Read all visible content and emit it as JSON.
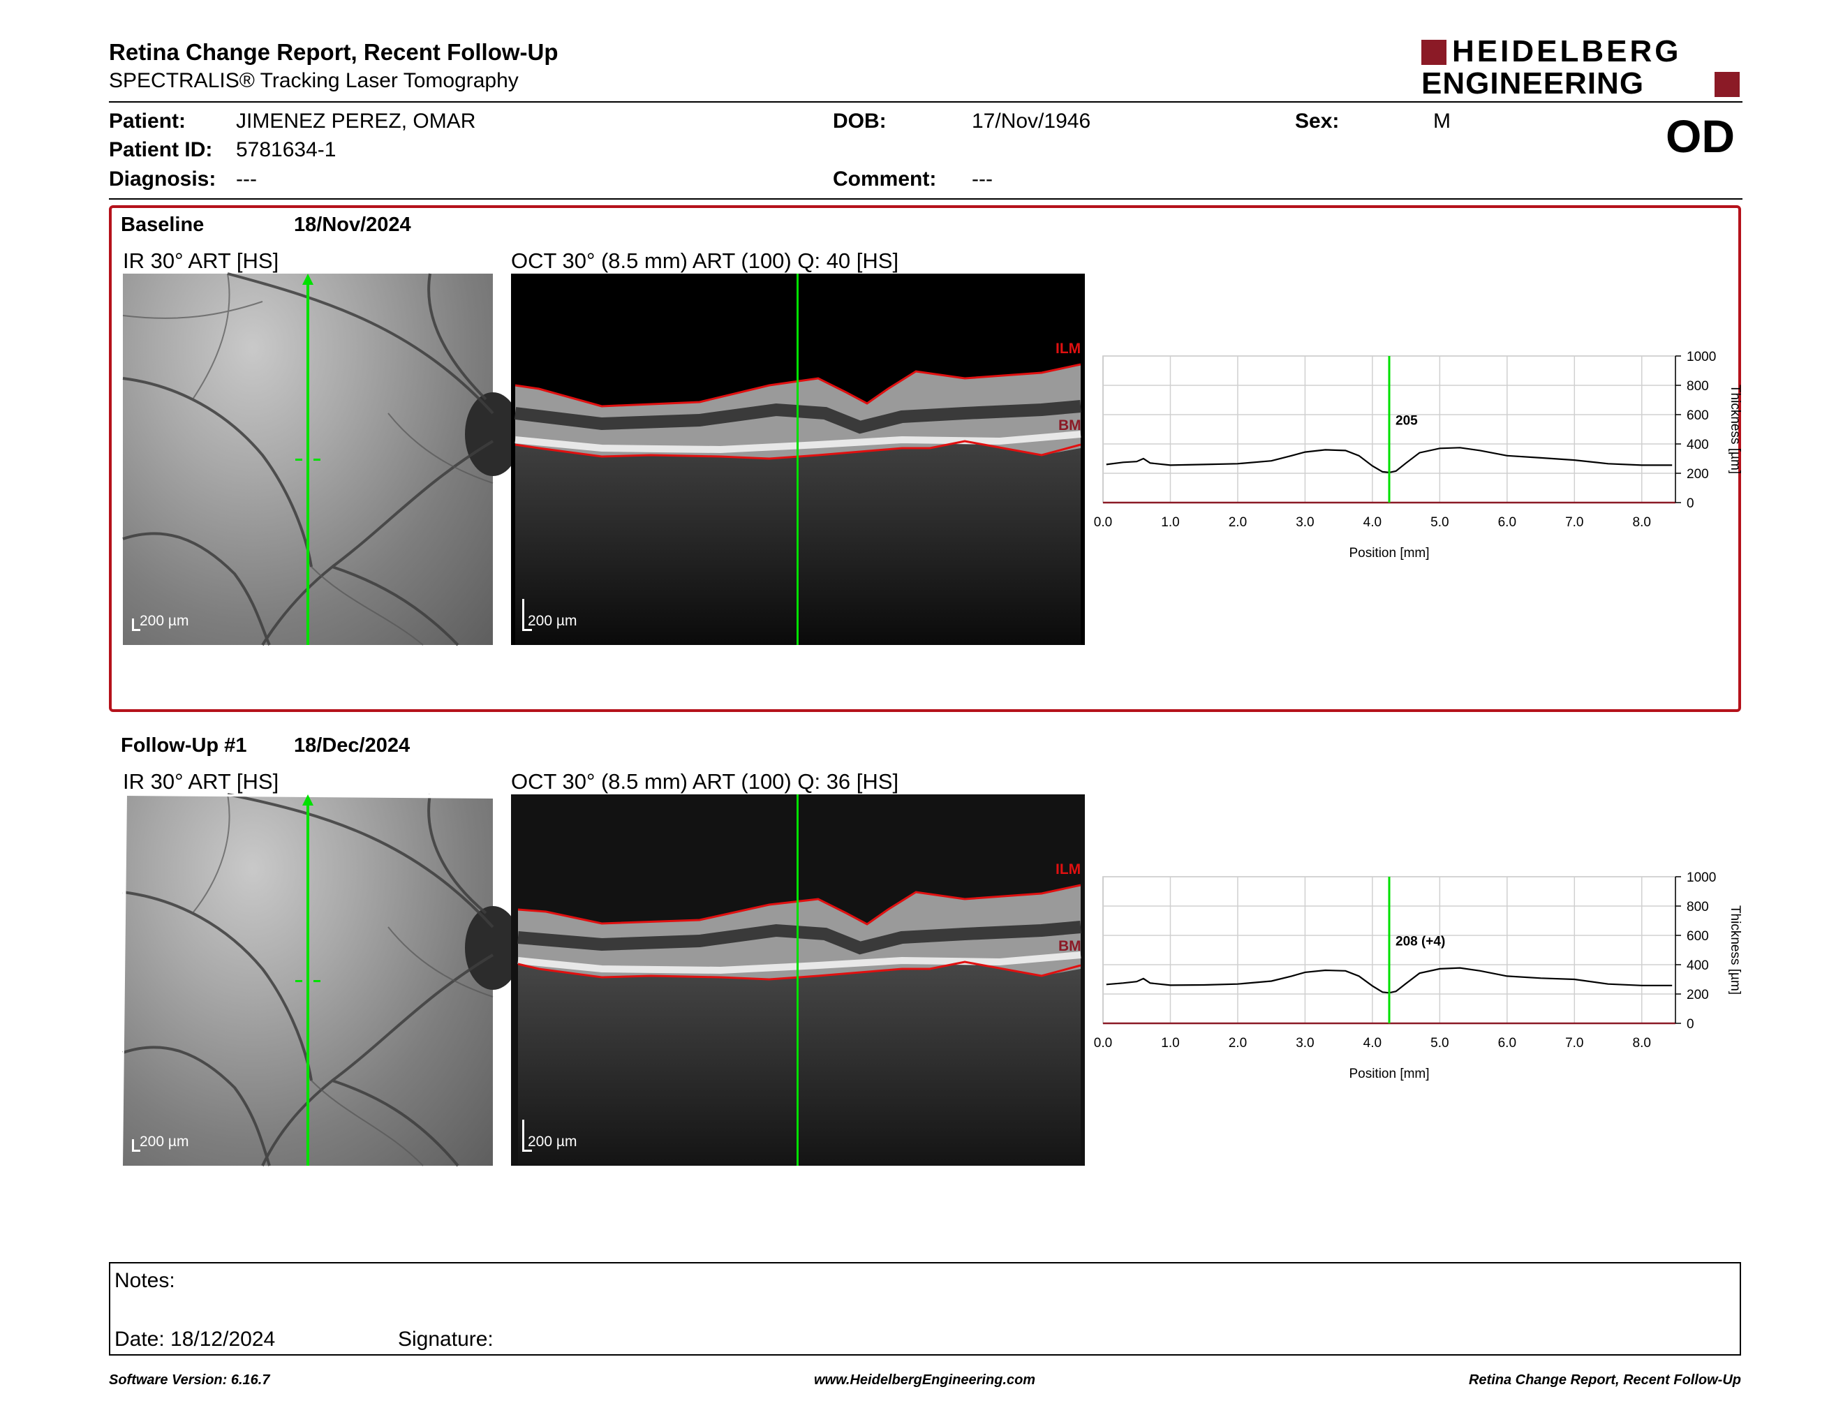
{
  "header": {
    "title": "Retina Change Report, Recent Follow-Up",
    "subtitle": "SPECTRALIS® Tracking Laser Tomography",
    "logo_line1": "HEIDELBERG",
    "logo_line2": "ENGINEERING",
    "eye": "OD"
  },
  "patient": {
    "patient_label": "Patient:",
    "patient_value": "JIMENEZ PEREZ, OMAR",
    "dob_label": "DOB:",
    "dob_value": "17/Nov/1946",
    "sex_label": "Sex:",
    "sex_value": "M",
    "id_label": "Patient ID:",
    "id_value": "5781634-1",
    "diagnosis_label": "Diagnosis:",
    "diagnosis_value": "---",
    "comment_label": "Comment:",
    "comment_value": "---"
  },
  "baseline": {
    "label": "Baseline",
    "date": "18/Nov/2024",
    "ir_title": "IR 30° ART [HS]",
    "oct_title": "OCT 30° (8.5 mm) ART (100) Q: 40 [HS]",
    "scale": "200 µm",
    "ilm": "ILM",
    "bm": "BM",
    "marker_label": "205"
  },
  "followup": {
    "label": "Follow-Up #1",
    "date": "18/Dec/2024",
    "ir_title": "IR 30° ART [HS]",
    "oct_title": "OCT 30° (8.5 mm) ART (100) Q: 36 [HS]",
    "scale": "200 µm",
    "ilm": "ILM",
    "bm": "BM",
    "marker_label": "208 (+4)"
  },
  "chart_data": [
    {
      "type": "line",
      "xlabel": "Position [mm]",
      "ylabel": "Thickness [µm]",
      "xlim": [
        0,
        8.5
      ],
      "ylim": [
        0,
        1000
      ],
      "xticks": [
        "0.0",
        "1.0",
        "2.0",
        "3.0",
        "4.0",
        "5.0",
        "6.0",
        "7.0",
        "8.0"
      ],
      "yticks": [
        "0",
        "200",
        "400",
        "600",
        "800",
        "1000"
      ],
      "grid": true,
      "marker_x": 4.25,
      "x": [
        0.05,
        0.3,
        0.5,
        0.6,
        0.7,
        1.0,
        1.5,
        2.0,
        2.5,
        2.8,
        3.0,
        3.3,
        3.6,
        3.8,
        4.0,
        4.15,
        4.25,
        4.35,
        4.5,
        4.7,
        5.0,
        5.3,
        5.6,
        6.0,
        6.5,
        7.0,
        7.5,
        8.0,
        8.45
      ],
      "y": [
        260,
        275,
        280,
        300,
        270,
        255,
        260,
        265,
        285,
        320,
        345,
        360,
        355,
        320,
        250,
        210,
        205,
        215,
        270,
        340,
        370,
        375,
        355,
        320,
        305,
        290,
        265,
        255,
        255
      ]
    },
    {
      "type": "line",
      "xlabel": "Position [mm]",
      "ylabel": "Thickness [µm]",
      "xlim": [
        0,
        8.5
      ],
      "ylim": [
        0,
        1000
      ],
      "xticks": [
        "0.0",
        "1.0",
        "2.0",
        "3.0",
        "4.0",
        "5.0",
        "6.0",
        "7.0",
        "8.0"
      ],
      "yticks": [
        "0",
        "200",
        "400",
        "600",
        "800",
        "1000"
      ],
      "grid": true,
      "marker_x": 4.25,
      "x": [
        0.05,
        0.3,
        0.5,
        0.6,
        0.7,
        1.0,
        1.5,
        2.0,
        2.5,
        2.8,
        3.0,
        3.3,
        3.6,
        3.8,
        4.0,
        4.15,
        4.25,
        4.35,
        4.5,
        4.7,
        5.0,
        5.3,
        5.6,
        6.0,
        6.5,
        7.0,
        7.5,
        8.0,
        8.45
      ],
      "y": [
        265,
        275,
        285,
        305,
        275,
        260,
        262,
        268,
        288,
        322,
        348,
        362,
        358,
        322,
        255,
        213,
        208,
        218,
        272,
        342,
        372,
        378,
        358,
        322,
        308,
        300,
        268,
        258,
        258
      ]
    }
  ],
  "notes": {
    "notes_label": "Notes:",
    "date_label": "Date: 18/12/2024",
    "signature_label": "Signature:"
  },
  "footer": {
    "software": "Software Version: 6.16.7",
    "website": "www.HeidelbergEngineering.com",
    "report": "Retina Change Report, Recent Follow-Up"
  },
  "colors": {
    "brand_red": "#8b1a26",
    "frame_red": "#b5121b",
    "scan_green": "#00e000",
    "layer_red": "#e01010"
  }
}
